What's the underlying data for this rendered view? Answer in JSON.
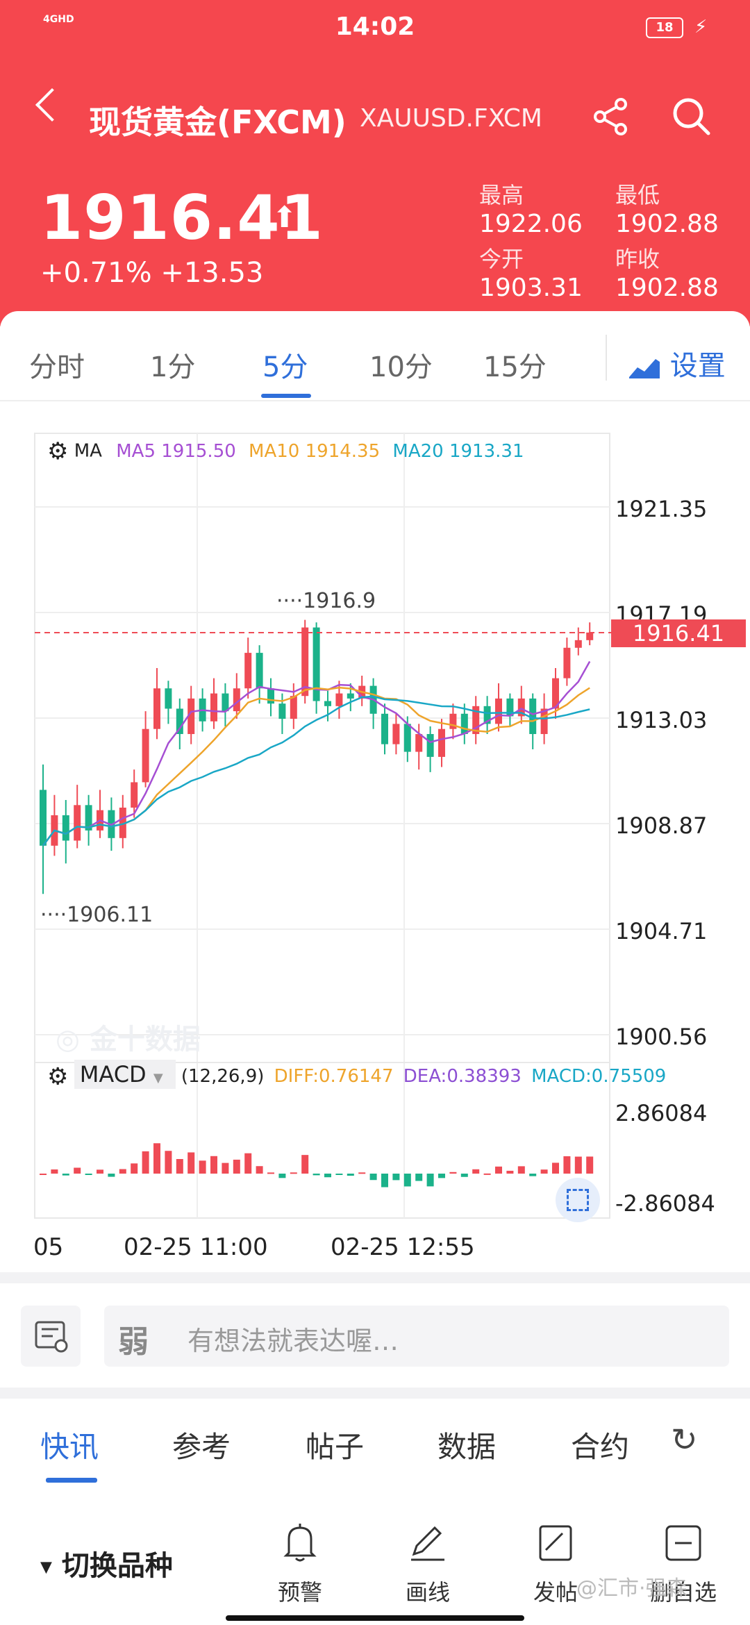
{
  "status_bar": {
    "time": "14:02",
    "network": "4GHD",
    "battery": "18"
  },
  "header": {
    "title": "现货黄金(FXCM)",
    "symbol": "XAUUSD.FXCM",
    "price": "1916.41",
    "change_pct": "+0.71%",
    "change_abs": "+13.53",
    "stats": {
      "high_label": "最高",
      "high": "1922.06",
      "low_label": "最低",
      "low": "1902.88",
      "open_label": "今开",
      "open": "1903.31",
      "prev_label": "昨收",
      "prev": "1902.88"
    },
    "colors": {
      "background": "#f5474e"
    }
  },
  "tabs": {
    "items": [
      "分时",
      "1分",
      "5分",
      "10分",
      "15分"
    ],
    "active": "5分",
    "settings": "设置"
  },
  "chart": {
    "ma_legend": {
      "label": "MA",
      "ma5": "MA5 1915.50",
      "ma10": "MA10 1914.35",
      "ma20": "MA20 1913.31"
    },
    "price_labels": [
      "1921.35",
      "1917.19",
      "1913.03",
      "1908.87",
      "1904.71",
      "1900.56"
    ],
    "current_price_tag": "1916.41",
    "high_marker": "1916.9",
    "low_marker": "1906.11",
    "watermark": "金十数据",
    "macd_legend": {
      "label": "MACD",
      "params": "(12,26,9)",
      "diff": "DIFF:0.76147",
      "dea": "DEA:0.38393",
      "macd": "MACD:0.75509"
    },
    "macd_labels": [
      "2.86084",
      "-2.86084"
    ],
    "time_labels": [
      "05",
      "02-25 11:00",
      "02-25 12:55"
    ],
    "colors": {
      "up": "#ef4b55",
      "down": "#1bb28a",
      "ma5": "#a64fd3",
      "ma10": "#eea42b",
      "ma20": "#19a7c6",
      "diff": "#eea42b",
      "dea": "#8c4fd3"
    }
  },
  "comment": {
    "placeholder": "有想法就表达喔…"
  },
  "bottom_tabs": {
    "items": [
      "快讯",
      "参考",
      "帖子",
      "数据",
      "合约"
    ],
    "active": "快讯"
  },
  "toolbar": {
    "switch_label": "切换品种",
    "alert": "预警",
    "draw": "画线",
    "post": "发帖",
    "watchlist": "删自选"
  },
  "watermark_corner": "@汇市·强森"
}
